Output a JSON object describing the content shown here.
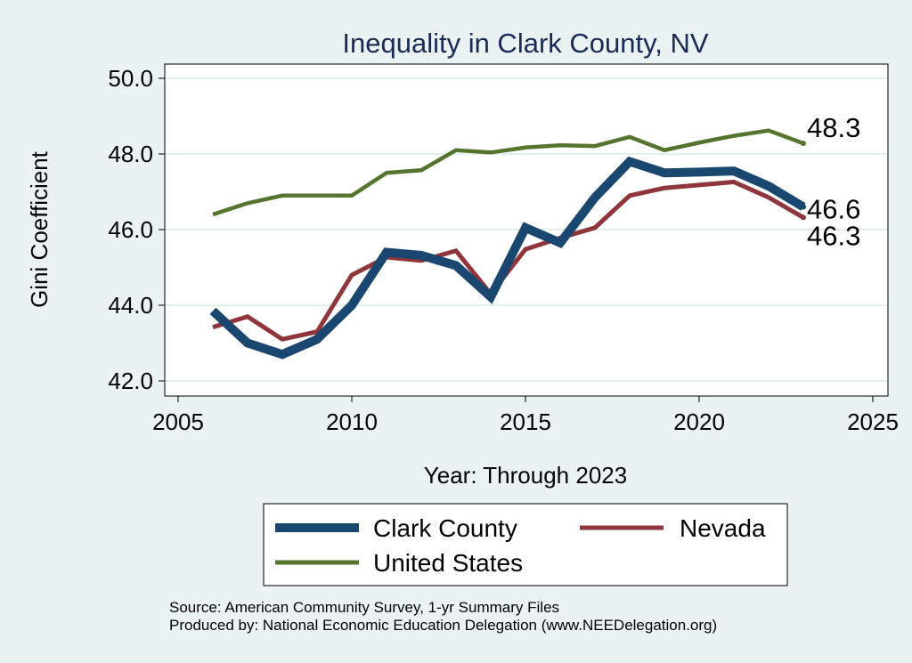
{
  "chart_data": {
    "type": "line",
    "title": "Inequality in Clark County, NV",
    "xlabel": "Year: Through 2023",
    "ylabel": "Gini Coefficient",
    "xlim": [
      2005,
      2025
    ],
    "ylim": [
      42,
      50
    ],
    "xticks": [
      2005,
      2010,
      2015,
      2020,
      2025
    ],
    "xtick_labels": [
      "2005",
      "2010",
      "2015",
      "2020",
      "2025"
    ],
    "yticks": [
      42,
      44,
      46,
      48,
      50
    ],
    "ytick_labels": [
      "42.0",
      "44.0",
      "46.0",
      "48.0",
      "50.0"
    ],
    "grid": "horizontal",
    "x": [
      2006,
      2007,
      2008,
      2009,
      2010,
      2011,
      2012,
      2013,
      2014,
      2015,
      2016,
      2017,
      2018,
      2019,
      2020,
      2021,
      2022,
      2023
    ],
    "series": [
      {
        "name": "Clark County",
        "color": "#1a476f",
        "values": [
          43.85,
          43.0,
          42.7,
          43.1,
          44.0,
          45.4,
          45.32,
          45.05,
          44.22,
          46.05,
          45.65,
          46.85,
          47.8,
          47.5,
          47.52,
          47.55,
          47.15,
          46.6
        ],
        "end_label": "46.6"
      },
      {
        "name": "Nevada",
        "color": "#90353b",
        "values": [
          43.42,
          43.7,
          43.1,
          43.3,
          44.8,
          45.27,
          45.18,
          45.44,
          44.3,
          45.48,
          45.78,
          46.05,
          46.9,
          47.1,
          47.18,
          47.26,
          46.85,
          46.32
        ],
        "end_label": "46.3"
      },
      {
        "name": "United States",
        "color": "#55752f",
        "values": [
          46.4,
          46.7,
          46.9,
          46.9,
          46.9,
          47.5,
          47.57,
          48.1,
          48.04,
          48.17,
          48.23,
          48.21,
          48.45,
          48.1,
          48.3,
          48.48,
          48.62,
          48.28
        ],
        "end_label": "48.3"
      }
    ],
    "legend": {
      "items": [
        "Clark County",
        "Nevada",
        "United States"
      ],
      "position": "bottom"
    }
  },
  "source_line1": "Source: American Community Survey, 1-yr Summary Files",
  "source_line2": "Produced by: National Economic Education Delegation (www.NEEDelegation.org)"
}
